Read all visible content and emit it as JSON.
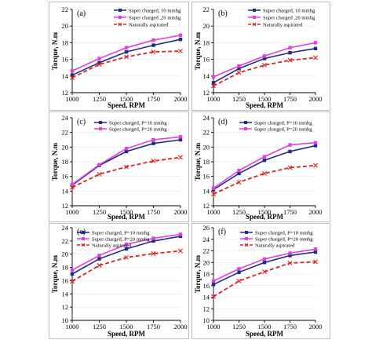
{
  "chart_data": [
    {
      "type": "line",
      "panel_label": "(a)",
      "x": [
        1000,
        1250,
        1500,
        1750,
        2000
      ],
      "xlabel": "Speed, RPM",
      "ylabel": "Torque, N.m",
      "xticks": [
        1000,
        1250,
        1500,
        1750,
        2000
      ],
      "yticks": [
        12,
        14,
        16,
        18,
        20,
        22
      ],
      "ylim": [
        12,
        22
      ],
      "grid": true,
      "legend_position": "top-right",
      "series": [
        {
          "name": "Super charged, 10 mmhg",
          "color": "#1f2a80",
          "marker": "square",
          "dashed": false,
          "values": [
            14.1,
            15.6,
            16.9,
            17.7,
            18.4
          ]
        },
        {
          "name": "Super charged ,20 mmhg",
          "color": "#e040e0",
          "marker": "square",
          "dashed": false,
          "values": [
            14.6,
            16.1,
            17.4,
            18.3,
            18.9
          ]
        },
        {
          "name": "Naturally aspirated",
          "color": "#dd2222",
          "marker": "x",
          "dashed": true,
          "values": [
            13.8,
            15.4,
            16.3,
            16.9,
            17.0
          ]
        }
      ]
    },
    {
      "type": "line",
      "panel_label": "(b)",
      "x": [
        1000,
        1250,
        1500,
        1750,
        2000
      ],
      "xlabel": "Speed, RPM",
      "ylabel": "Torque, N.m",
      "xticks": [
        1000,
        1250,
        1500,
        1750,
        2000
      ],
      "yticks": [
        12,
        14,
        16,
        18,
        20,
        22
      ],
      "ylim": [
        12,
        22
      ],
      "grid": true,
      "legend_position": "top-right",
      "series": [
        {
          "name": "Super charged, 10 mmhg",
          "color": "#1f2a80",
          "marker": "square",
          "dashed": false,
          "values": [
            13.2,
            14.9,
            16.1,
            16.8,
            17.3
          ]
        },
        {
          "name": "Super charged ,20 mmhg",
          "color": "#e040e0",
          "marker": "square",
          "dashed": false,
          "values": [
            13.9,
            15.2,
            16.4,
            17.4,
            18.0
          ]
        },
        {
          "name": "Naturally aspirated",
          "color": "#dd2222",
          "marker": "x",
          "dashed": true,
          "values": [
            12.8,
            14.4,
            15.3,
            15.9,
            16.2
          ]
        }
      ]
    },
    {
      "type": "line",
      "panel_label": "(c)",
      "x": [
        1000,
        1250,
        1500,
        1750,
        2000
      ],
      "xlabel": "Speed, RPM",
      "ylabel": "Torque, N.m",
      "xticks": [
        1000,
        1250,
        1500,
        1750,
        2000
      ],
      "yticks": [
        12,
        14,
        16,
        18,
        20,
        22,
        24
      ],
      "ylim": [
        12,
        24
      ],
      "grid": true,
      "legend_position": "top-right",
      "series": [
        {
          "name": "Super charged, P=10 mmhg",
          "color": "#1f2a80",
          "marker": "square",
          "dashed": false,
          "values": [
            14.8,
            17.5,
            19.4,
            20.5,
            21.0
          ]
        },
        {
          "name": "Super charged, P=20 mmhg",
          "color": "#e040e0",
          "marker": "square",
          "dashed": false,
          "values": [
            14.9,
            17.6,
            19.8,
            21.0,
            21.4
          ]
        },
        {
          "name": "",
          "color": "#dd2222",
          "marker": "x",
          "dashed": true,
          "values": [
            14.5,
            16.3,
            17.3,
            18.1,
            18.6
          ]
        }
      ]
    },
    {
      "type": "line",
      "panel_label": "(d)",
      "x": [
        1000,
        1250,
        1500,
        1750,
        2000
      ],
      "xlabel": "Speed, RPM",
      "ylabel": "Torque, N.m",
      "xticks": [
        1000,
        1250,
        1500,
        1750,
        2000
      ],
      "yticks": [
        12,
        14,
        16,
        18,
        20,
        22,
        24
      ],
      "ylim": [
        12,
        24
      ],
      "grid": true,
      "legend_position": "top-right",
      "series": [
        {
          "name": "Super charged, P=10 mmhg",
          "color": "#1f2a80",
          "marker": "square",
          "dashed": false,
          "values": [
            14.2,
            16.4,
            18.2,
            19.4,
            20.2
          ]
        },
        {
          "name": "Super charged, P=20 mmhg",
          "color": "#e040e0",
          "marker": "square",
          "dashed": false,
          "values": [
            14.4,
            16.8,
            18.7,
            20.3,
            20.6
          ]
        },
        {
          "name": "",
          "color": "#dd2222",
          "marker": "x",
          "dashed": true,
          "values": [
            13.6,
            15.2,
            16.4,
            17.2,
            17.5
          ]
        }
      ]
    },
    {
      "type": "line",
      "panel_label": "(e)",
      "x": [
        1000,
        1250,
        1500,
        1750,
        2000
      ],
      "xlabel": "Speed, RPM",
      "ylabel": "Torque, N.m",
      "xticks": [
        1000,
        1250,
        1500,
        1750,
        2000
      ],
      "yticks": [
        10,
        12,
        14,
        16,
        18,
        20,
        22,
        24
      ],
      "ylim": [
        10,
        24
      ],
      "grid": true,
      "legend_position": "top",
      "series": [
        {
          "name": "Super charged, P=10 mmhg",
          "color": "#1f2a80",
          "marker": "square",
          "dashed": false,
          "values": [
            17.0,
            19.3,
            20.8,
            22.0,
            22.7
          ]
        },
        {
          "name": "Super charged, P=20 mmhg",
          "color": "#e040e0",
          "marker": "square",
          "dashed": false,
          "values": [
            17.6,
            19.8,
            21.5,
            22.4,
            23.0
          ]
        },
        {
          "name": "Naturally aspirated",
          "color": "#dd2222",
          "marker": "x",
          "dashed": true,
          "values": [
            15.9,
            18.3,
            19.5,
            20.1,
            20.5
          ]
        }
      ]
    },
    {
      "type": "line",
      "panel_label": "(f)",
      "x": [
        1000,
        1250,
        1500,
        1750,
        2000
      ],
      "xlabel": "Speed, RPM",
      "ylabel": "Torque, N.m",
      "xticks": [
        1000,
        1250,
        1500,
        1750,
        2000
      ],
      "yticks": [
        10,
        12,
        14,
        16,
        18,
        20,
        22,
        24,
        26
      ],
      "ylim": [
        10,
        26
      ],
      "grid": true,
      "legend_position": "top-right",
      "series": [
        {
          "name": "Super charged, P=10 mmhg",
          "color": "#1f2a80",
          "marker": "square",
          "dashed": false,
          "values": [
            16.2,
            18.3,
            20.0,
            21.2,
            21.8
          ]
        },
        {
          "name": "Super charged, P=20 mmhg",
          "color": "#e040e0",
          "marker": "square",
          "dashed": false,
          "values": [
            16.8,
            18.9,
            20.6,
            21.6,
            22.3
          ]
        },
        {
          "name": "Naturally aspirated",
          "color": "#dd2222",
          "marker": "x",
          "dashed": true,
          "values": [
            14.1,
            16.8,
            18.4,
            19.9,
            20.1
          ]
        }
      ]
    }
  ]
}
